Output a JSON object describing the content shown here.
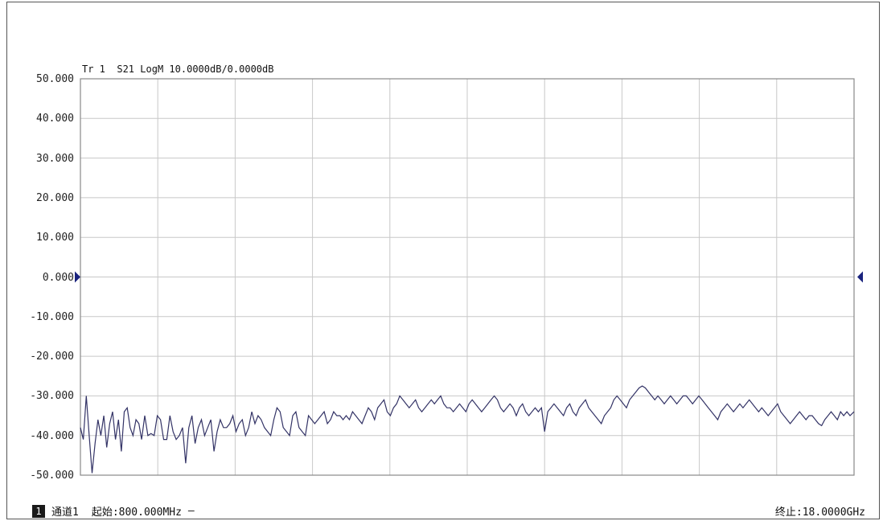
{
  "trace_header": {
    "trace": "Tr 1",
    "param": "S21",
    "format": "LogM",
    "scale_ref": "10.0000dB/0.0000dB"
  },
  "footer": {
    "channel_number": "1",
    "channel_label": "通道1",
    "start": "起始:800.000MHz",
    "dash": "—",
    "stop": "终止:18.0000GHz"
  },
  "colors": {
    "grid": "#c8c8c8",
    "plot_border": "#888888",
    "trace": "#333366",
    "ref_marker": "#1a237e"
  },
  "chart_data": {
    "type": "line",
    "xlabel": "",
    "ylabel": "",
    "xlim": [
      0.8,
      18.0
    ],
    "ylim": [
      -50,
      50
    ],
    "yticks": [
      "50.000",
      "40.000",
      "30.000",
      "20.000",
      "10.000",
      "0.000",
      "-10.000",
      "-20.000",
      "-30.000",
      "-40.000",
      "-50.000"
    ],
    "reference_level": 0,
    "grid": true,
    "series": [
      {
        "x": [
          0.8,
          0.865,
          0.93,
          0.995,
          1.06,
          1.125,
          1.19,
          1.255,
          1.32,
          1.385,
          1.45,
          1.515,
          1.58,
          1.645,
          1.71,
          1.775,
          1.84,
          1.905,
          1.97,
          2.035,
          2.1,
          2.16,
          2.23,
          2.3,
          2.37,
          2.44,
          2.51,
          2.58,
          2.65,
          2.72,
          2.79,
          2.86,
          2.93,
          3.0,
          3.07,
          3.14,
          3.21,
          3.28,
          3.35,
          3.42,
          3.49,
          3.56,
          3.63,
          3.7,
          3.77,
          3.84,
          3.91,
          3.98,
          4.05,
          4.12,
          4.19,
          4.26,
          4.33,
          4.4,
          4.47,
          4.54,
          4.61,
          4.68,
          4.75,
          4.82,
          4.89,
          4.96,
          5.03,
          5.1,
          5.17,
          5.24,
          5.31,
          5.38,
          5.45,
          5.52,
          5.59,
          5.66,
          5.73,
          5.8,
          5.87,
          5.94,
          6.01,
          6.08,
          6.15,
          6.22,
          6.29,
          6.36,
          6.43,
          6.5,
          6.57,
          6.64,
          6.71,
          6.78,
          6.85,
          6.92,
          6.99,
          7.06,
          7.13,
          7.2,
          7.27,
          7.34,
          7.41,
          7.48,
          7.55,
          7.62,
          7.69,
          7.76,
          7.83,
          7.9,
          7.97,
          8.04,
          8.11,
          8.18,
          8.25,
          8.32,
          8.39,
          8.46,
          8.53,
          8.6,
          8.67,
          8.74,
          8.81,
          8.88,
          8.95,
          9.02,
          9.09,
          9.16,
          9.23,
          9.3,
          9.37,
          9.44,
          9.51,
          9.58,
          9.65,
          9.72,
          9.79,
          9.86,
          9.93,
          10.0,
          10.07,
          10.14,
          10.21,
          10.28,
          10.35,
          10.42,
          10.49,
          10.56,
          10.63,
          10.7,
          10.77,
          10.84,
          10.91,
          10.98,
          11.05,
          11.12,
          11.19,
          11.26,
          11.33,
          11.4,
          11.47,
          11.54,
          11.61,
          11.68,
          11.75,
          11.82,
          11.89,
          11.96,
          12.03,
          12.1,
          12.17,
          12.24,
          12.31,
          12.38,
          12.45,
          12.52,
          12.59,
          12.66,
          12.73,
          12.8,
          12.87,
          12.94,
          13.01,
          13.08,
          13.15,
          13.22,
          13.29,
          13.36,
          13.43,
          13.5,
          13.57,
          13.64,
          13.71,
          13.78,
          13.85,
          13.92,
          13.99,
          14.06,
          14.13,
          14.2,
          14.27,
          14.34,
          14.41,
          14.48,
          14.55,
          14.62,
          14.69,
          14.76,
          14.83,
          14.9,
          14.97,
          15.04,
          15.11,
          15.18,
          15.25,
          15.32,
          15.39,
          15.46,
          15.53,
          15.6,
          15.67,
          15.74,
          15.81,
          15.88,
          15.95,
          16.02,
          16.09,
          16.16,
          16.23,
          16.3,
          16.37,
          16.44,
          16.51,
          16.58,
          16.65,
          16.72,
          16.79,
          16.86,
          16.93,
          17.0,
          17.07,
          17.14,
          17.21,
          17.28,
          17.35,
          17.42,
          17.49,
          17.56,
          17.63,
          17.7,
          17.77,
          17.84,
          17.91,
          18.0
        ],
        "y": [
          -38,
          -41,
          -30,
          -40,
          -49.5,
          -42,
          -36,
          -40,
          -35,
          -43,
          -37,
          -34,
          -41,
          -36,
          -44,
          -34,
          -33,
          -38,
          -40,
          -36,
          -37,
          -41,
          -35,
          -40,
          -39.5,
          -40,
          -35,
          -36,
          -41,
          -41,
          -35,
          -39,
          -41,
          -40,
          -38,
          -47,
          -38,
          -35,
          -42,
          -38,
          -36,
          -40,
          -38,
          -36,
          -44,
          -39,
          -36,
          -38,
          -38,
          -37,
          -35,
          -39,
          -37,
          -36,
          -40,
          -38,
          -34,
          -37,
          -35,
          -36,
          -38,
          -39,
          -40,
          -36,
          -33,
          -34,
          -38,
          -39,
          -40,
          -35,
          -34,
          -38,
          -39,
          -40,
          -35,
          -36,
          -37,
          -36,
          -35,
          -34,
          -37,
          -36,
          -34,
          -35,
          -35,
          -36,
          -35,
          -36,
          -34,
          -35,
          -36,
          -37,
          -35,
          -33,
          -34,
          -36,
          -33,
          -32,
          -31,
          -34,
          -35,
          -33,
          -32,
          -30,
          -31,
          -32,
          -33,
          -32,
          -31,
          -33,
          -34,
          -33,
          -32,
          -31,
          -32,
          -31,
          -30,
          -32,
          -33,
          -33,
          -34,
          -33,
          -32,
          -33,
          -34,
          -32,
          -31,
          -32,
          -33,
          -34,
          -33,
          -32,
          -31,
          -30,
          -31,
          -33,
          -34,
          -33,
          -32,
          -33,
          -35,
          -33,
          -32,
          -34,
          -35,
          -34,
          -33,
          -34,
          -33,
          -39,
          -34,
          -33,
          -32,
          -33,
          -34,
          -35,
          -33,
          -32,
          -34,
          -35,
          -33,
          -32,
          -31,
          -33,
          -34,
          -35,
          -36,
          -37,
          -35,
          -34,
          -33,
          -31,
          -30,
          -31,
          -32,
          -33,
          -31,
          -30,
          -29,
          -28,
          -27.5,
          -28,
          -29,
          -30,
          -31,
          -30,
          -31,
          -32,
          -31,
          -30,
          -31,
          -32,
          -31,
          -30,
          -30,
          -31,
          -32,
          -31,
          -30,
          -31,
          -32,
          -33,
          -34,
          -35,
          -36,
          -34,
          -33,
          -32,
          -33,
          -34,
          -33,
          -32,
          -33,
          -32,
          -31,
          -32,
          -33,
          -34,
          -33,
          -34,
          -35,
          -34,
          -33,
          -32,
          -34,
          -35,
          -36,
          -37,
          -36,
          -35,
          -34,
          -35,
          -36,
          -35,
          -35,
          -36,
          -37,
          -37.5,
          -36,
          -35,
          -34,
          -35,
          -36,
          -34,
          -35,
          -34,
          -35,
          -34
        ]
      }
    ]
  }
}
